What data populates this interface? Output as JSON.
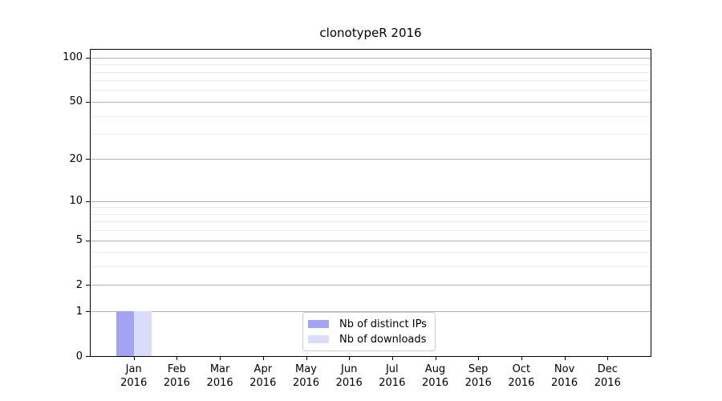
{
  "title": "clonotypeR 2016",
  "chart_data": {
    "type": "bar",
    "title": "clonotypeR 2016",
    "categories": [
      "Jan\n2016",
      "Feb\n2016",
      "Mar\n2016",
      "Apr\n2016",
      "May\n2016",
      "Jun\n2016",
      "Jul\n2016",
      "Aug\n2016",
      "Sep\n2016",
      "Oct\n2016",
      "Nov\n2016",
      "Dec\n2016"
    ],
    "series": [
      {
        "name": "Nb of distinct IPs",
        "color": "#a3a3f5",
        "values": [
          1,
          0,
          0,
          0,
          0,
          0,
          0,
          0,
          0,
          0,
          0,
          0
        ]
      },
      {
        "name": "Nb of downloads",
        "color": "#dbdbfa",
        "values": [
          1,
          0,
          0,
          0,
          0,
          0,
          0,
          0,
          0,
          0,
          0,
          0
        ]
      }
    ],
    "xlabel": "",
    "ylabel": "",
    "y_scale": "log1p",
    "ylim": [
      0,
      113
    ],
    "y_major_ticks": [
      0,
      1,
      2,
      5,
      10,
      20,
      50,
      100
    ],
    "y_minor_ticks": [
      3,
      4,
      6,
      7,
      8,
      9,
      30,
      40,
      60,
      70,
      80,
      90
    ],
    "grid": "horizontal",
    "legend_position": "lower center",
    "colors": {
      "major_grid": "#b3b3b3",
      "minor_grid": "#ececec",
      "axis": "#000000",
      "legend_border": "#cccccc",
      "background": "#ffffff"
    }
  }
}
